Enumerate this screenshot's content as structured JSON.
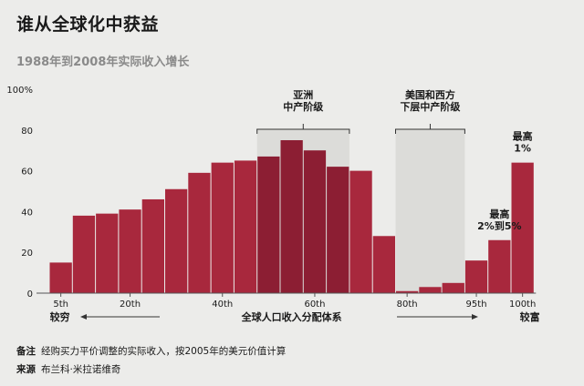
{
  "title": "谁从全球化中获益",
  "subtitle": "1988年到2008年实际收入增长",
  "chart_data": {
    "type": "bar",
    "xlabel": "全球人口收入分配体系",
    "ylabel": "",
    "ylim": [
      0,
      100
    ],
    "yticks": [
      0,
      20,
      40,
      60,
      80,
      100
    ],
    "ytick_labels": [
      "0",
      "20",
      "40",
      "60",
      "80",
      "100%"
    ],
    "xtick_labels": [
      {
        "label": "5th",
        "bar_index": 0
      },
      {
        "label": "20th",
        "bar_index": 3
      },
      {
        "label": "40th",
        "bar_index": 7
      },
      {
        "label": "60th",
        "bar_index": 11
      },
      {
        "label": "80th",
        "bar_index": 15
      },
      {
        "label": "95th",
        "bar_index": 18
      },
      {
        "label": "100th",
        "bar_index": 20
      }
    ],
    "values": [
      15,
      38,
      39,
      41,
      46,
      51,
      59,
      64,
      65,
      67,
      75,
      70,
      62,
      60,
      28,
      1,
      3,
      5,
      16,
      26,
      64
    ],
    "highlight_range": [
      9,
      12
    ],
    "grid": false,
    "poorer_label": "较穷",
    "richer_label": "较富",
    "annotations": [
      {
        "lines": [
          "亚洲",
          "中产阶级"
        ],
        "from_bar": 9,
        "to_bar": 12,
        "band": true
      },
      {
        "lines": [
          "美国和西方",
          "下层中产阶级"
        ],
        "from_bar": 15,
        "to_bar": 17,
        "band": true
      },
      {
        "lines": [
          "最高",
          "2%到5%"
        ],
        "bar": 19
      },
      {
        "lines": [
          "最高",
          "1%"
        ],
        "bar": 20
      }
    ],
    "colors": {
      "bar": "#a8283d",
      "bar_highlight": "#8c1e33",
      "band": "#dcdcd9",
      "axis": "#555555"
    }
  },
  "notes": {
    "note_label": "备注",
    "note_text": "经购买力平价调整的实际收入，按2005年的美元价值计算",
    "source_label": "来源",
    "source_text": "布兰科·米拉诺维奇"
  }
}
